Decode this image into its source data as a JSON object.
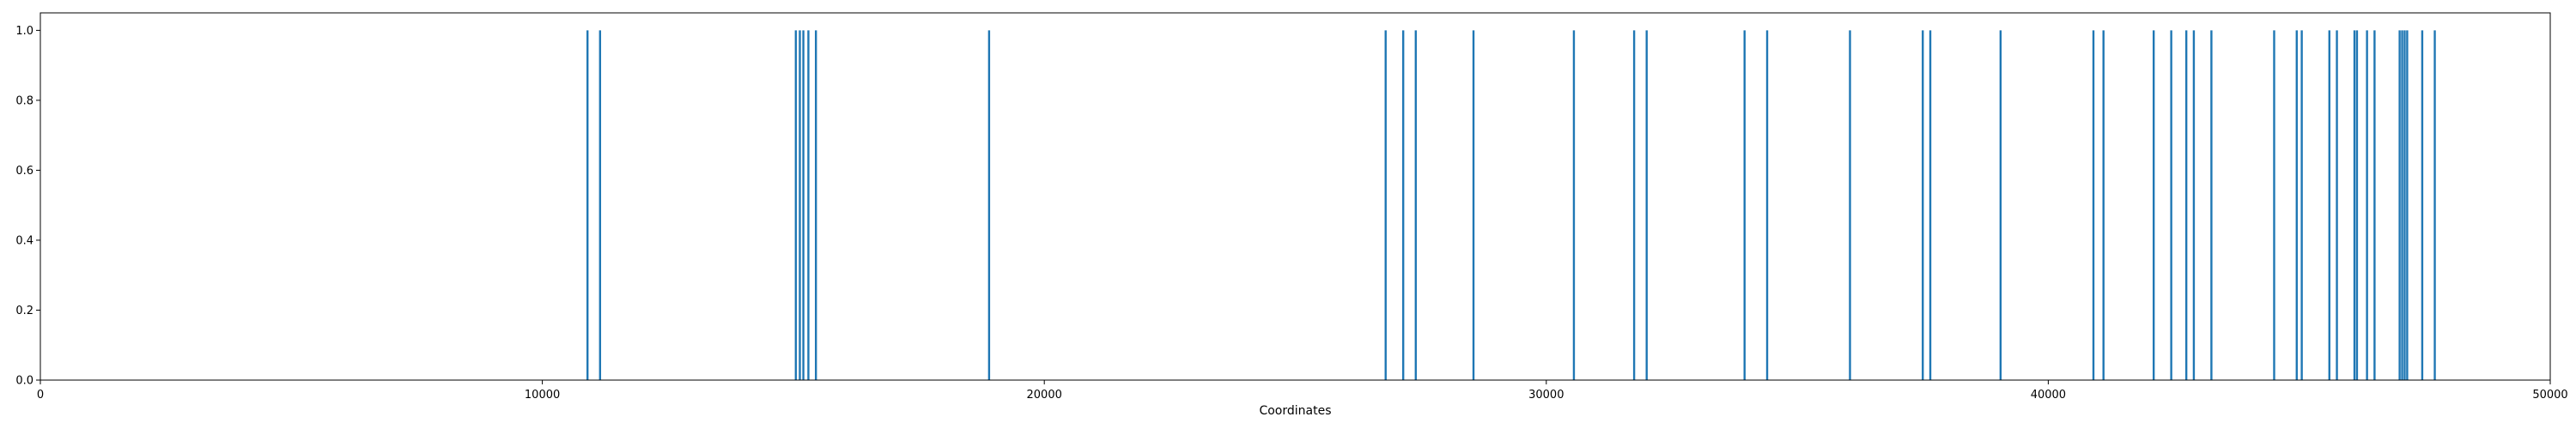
{
  "chart_data": {
    "type": "bar",
    "title": "",
    "xlabel": "Coordinates",
    "ylabel": "",
    "xlim": [
      0,
      50000
    ],
    "ylim": [
      0,
      1.05
    ],
    "grid": false,
    "color": "#1f77b4",
    "x_ticks": [
      0,
      10000,
      20000,
      30000,
      40000,
      50000
    ],
    "x_tick_labels": [
      "0",
      "10000",
      "20000",
      "30000",
      "40000",
      "50000"
    ],
    "y_ticks": [
      0,
      0.2,
      0.4,
      0.6,
      0.8,
      1.0
    ],
    "y_tick_labels": [
      "0.0",
      "0.2",
      "0.4",
      "0.6",
      "0.8",
      "1.0"
    ],
    "x": [
      10900,
      11150,
      15050,
      15130,
      15200,
      15300,
      15450,
      18900,
      26800,
      27150,
      27400,
      28550,
      30550,
      31750,
      32000,
      33950,
      34400,
      36050,
      37500,
      37650,
      39050,
      40900,
      41100,
      42100,
      42450,
      42750,
      42900,
      43250,
      44500,
      44950,
      45050,
      45600,
      45750,
      46100,
      46150,
      46350,
      46500,
      47000,
      47050,
      47100,
      47150,
      47450,
      47700
    ],
    "values": [
      1,
      1,
      1,
      1,
      1,
      1,
      1,
      1,
      1,
      1,
      1,
      1,
      1,
      1,
      1,
      1,
      1,
      1,
      1,
      1,
      1,
      1,
      1,
      1,
      1,
      1,
      1,
      1,
      1,
      1,
      1,
      1,
      1,
      1,
      1,
      1,
      1,
      1,
      1,
      1,
      1,
      1,
      1
    ]
  }
}
